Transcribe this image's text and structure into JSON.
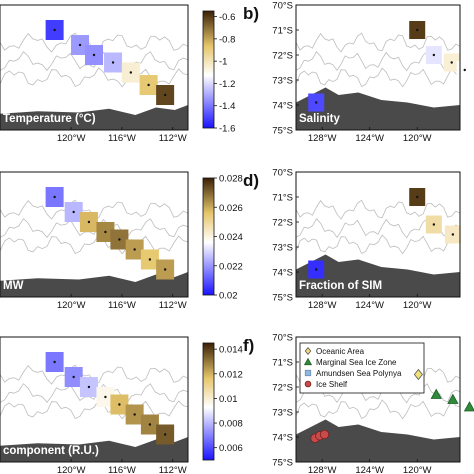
{
  "chart_data": [
    {
      "panel": "a",
      "type": "heatmap",
      "label": "Temperature (°C)",
      "x_ticks": [
        "120°W",
        "116°W",
        "112°W"
      ],
      "colorbar": {
        "ticks": [
          "-0.6",
          "-0.8",
          "-1",
          "-1.2",
          "-1.4",
          "-1.6"
        ],
        "range": [
          -1.6,
          -0.55
        ],
        "colors": [
          "#1b14ff",
          "#ffffff",
          "#3a2008"
        ]
      },
      "points": [
        {
          "lon": -121.3,
          "lat": -71.0,
          "value": -1.52
        },
        {
          "lon": -119.3,
          "lat": -71.6,
          "value": -1.33
        },
        {
          "lon": -118.2,
          "lat": -72.0,
          "value": -1.35
        },
        {
          "lon": -116.7,
          "lat": -72.3,
          "value": -1.27
        },
        {
          "lon": -115.3,
          "lat": -72.7,
          "value": -1.05
        },
        {
          "lon": -113.9,
          "lat": -73.2,
          "value": -0.88
        },
        {
          "lon": -112.6,
          "lat": -73.6,
          "value": -0.62
        }
      ]
    },
    {
      "panel": "b",
      "letter": "b)",
      "type": "heatmap",
      "label": "Salinity",
      "x_ticks": [
        "128°W",
        "124°W",
        "120°W"
      ],
      "y_ticks": [
        "70°S",
        "71°S",
        "72°S",
        "73°S",
        "74°S",
        "75°S"
      ],
      "points": [
        {
          "lon": -120.0,
          "lat": -71.0,
          "value": 0.95
        },
        {
          "lon": -118.6,
          "lat": -72.0,
          "value": 0.4
        },
        {
          "lon": -117.1,
          "lat": -72.3,
          "value": 0.52
        },
        {
          "lon": -116.0,
          "lat": -72.6,
          "value": 0.45
        },
        {
          "lon": -128.5,
          "lat": -73.9,
          "value": 0.1
        }
      ]
    },
    {
      "panel": "c",
      "type": "heatmap",
      "label": "MW",
      "x_ticks": [
        "120°W",
        "116°W",
        "112°W"
      ],
      "colorbar": {
        "ticks": [
          "0.028",
          "0.026",
          "0.024",
          "0.022",
          "0.02"
        ],
        "range": [
          0.02,
          0.028
        ],
        "colors": [
          "#1b14ff",
          "#ffffff",
          "#3a2008"
        ]
      },
      "points": [
        {
          "lon": -121.3,
          "lat": -71.0,
          "value": 0.0215
        },
        {
          "lon": -119.8,
          "lat": -71.6,
          "value": 0.0225
        },
        {
          "lon": -118.6,
          "lat": -72.0,
          "value": 0.0258
        },
        {
          "lon": -117.3,
          "lat": -72.4,
          "value": 0.0265
        },
        {
          "lon": -116.2,
          "lat": -72.7,
          "value": 0.0268
        },
        {
          "lon": -115.0,
          "lat": -73.1,
          "value": 0.0262
        },
        {
          "lon": -113.8,
          "lat": -73.5,
          "value": 0.0255
        },
        {
          "lon": -112.6,
          "lat": -73.9,
          "value": 0.0262
        }
      ]
    },
    {
      "panel": "d",
      "letter": "d)",
      "type": "heatmap",
      "label": "Fraction of SIM",
      "x_ticks": [
        "128°W",
        "124°W",
        "120°W"
      ],
      "y_ticks": [
        "70°S",
        "71°S",
        "72°S",
        "73°S",
        "74°S",
        "75°S"
      ],
      "points": [
        {
          "lon": -120.0,
          "lat": -71.0,
          "value": 0.95
        },
        {
          "lon": -118.6,
          "lat": -72.1,
          "value": 0.6
        },
        {
          "lon": -117.0,
          "lat": -72.5,
          "value": 0.55
        },
        {
          "lon": -128.5,
          "lat": -73.9,
          "value": 0.05
        }
      ]
    },
    {
      "panel": "e",
      "type": "heatmap",
      "label": "component (R.U.)",
      "x_ticks": [
        "120°W",
        "116°W",
        "112°W"
      ],
      "colorbar": {
        "ticks": [
          "0.014",
          "0.012",
          "0.01",
          "0.008",
          "0.006"
        ],
        "range": [
          0.005,
          0.0145
        ],
        "colors": [
          "#1b14ff",
          "#ffffff",
          "#3a2008"
        ]
      },
      "points": [
        {
          "lon": -121.3,
          "lat": -71.0,
          "value": 0.0068
        },
        {
          "lon": -119.8,
          "lat": -71.6,
          "value": 0.0072
        },
        {
          "lon": -118.6,
          "lat": -72.0,
          "value": 0.0082
        },
        {
          "lon": -117.3,
          "lat": -72.4,
          "value": 0.0096
        },
        {
          "lon": -116.2,
          "lat": -72.7,
          "value": 0.0118
        },
        {
          "lon": -115.0,
          "lat": -73.1,
          "value": 0.0125
        },
        {
          "lon": -113.8,
          "lat": -73.5,
          "value": 0.0128
        },
        {
          "lon": -112.6,
          "lat": -73.9,
          "value": 0.0135
        }
      ]
    },
    {
      "panel": "f",
      "letter": "f)",
      "type": "scatter",
      "x_ticks": [
        "128°W",
        "124°W",
        "120°W"
      ],
      "y_ticks": [
        "70°S",
        "71°S",
        "72°S",
        "73°S",
        "74°S",
        "75°S"
      ],
      "legend": [
        {
          "label": "Oceanic Area",
          "marker": "diamond",
          "color": "#f2e07a"
        },
        {
          "label": "Marginal Sea Ice Zone",
          "marker": "triangle",
          "color": "#2e8b3a"
        },
        {
          "label": "Amundsen Sea Polynya",
          "marker": "square",
          "color": "#8fb8e0"
        },
        {
          "label": "Ice Shelf",
          "marker": "circle",
          "color": "#c84b4b"
        }
      ],
      "points": [
        {
          "group": "Oceanic Area",
          "lon": -119.9,
          "lat": -71.5
        },
        {
          "group": "Marginal Sea Ice Zone",
          "lon": -118.4,
          "lat": -72.3
        },
        {
          "group": "Marginal Sea Ice Zone",
          "lon": -117.0,
          "lat": -72.5
        },
        {
          "group": "Marginal Sea Ice Zone",
          "lon": -115.6,
          "lat": -72.8
        },
        {
          "group": "Ice Shelf",
          "lon": -128.6,
          "lat": -74.05
        },
        {
          "group": "Ice Shelf",
          "lon": -128.2,
          "lat": -73.95
        },
        {
          "group": "Ice Shelf",
          "lon": -127.8,
          "lat": -73.9
        }
      ]
    }
  ]
}
